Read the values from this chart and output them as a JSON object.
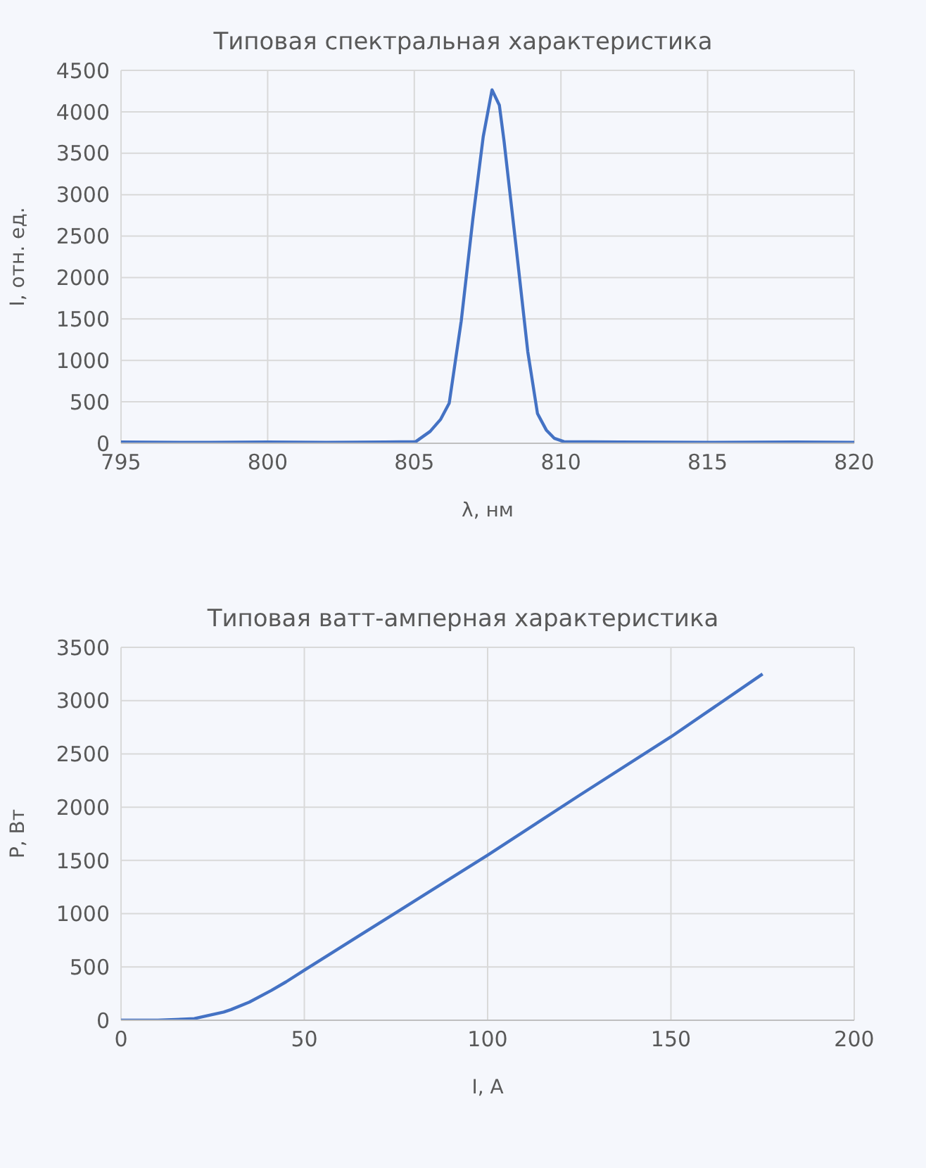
{
  "chart_data": [
    {
      "type": "line",
      "title": "Типовая спектральная характеристика",
      "xlabel": "λ, нм",
      "ylabel": "I, отн. ед.",
      "series": [
        {
          "color": "#4472c4",
          "x": [
            795,
            798,
            800,
            802,
            804,
            805.05,
            805.54,
            805.9,
            806.19,
            806.6,
            807.0,
            807.35,
            807.65,
            807.9,
            808.06,
            808.46,
            808.87,
            809.2,
            809.5,
            809.77,
            810.1,
            812,
            815,
            818,
            820
          ],
          "values": [
            15,
            10,
            15,
            10,
            15,
            20,
            143,
            290,
            484,
            1475,
            2716,
            3700,
            4265,
            4080,
            3646,
            2405,
            1103,
            359,
            160,
            61,
            20,
            15,
            10,
            15,
            10
          ]
        }
      ],
      "xlim": [
        795,
        820
      ],
      "xticks": [
        795,
        800,
        805,
        810,
        815,
        820
      ],
      "ylim": [
        0,
        4500
      ],
      "yticks": [
        0,
        500,
        1000,
        1500,
        2000,
        2500,
        3000,
        3500,
        4000,
        4500
      ],
      "grid": true,
      "marker": "none",
      "line_style": "solid"
    },
    {
      "type": "line",
      "title": "Типовая ватт-амперная характеристика",
      "xlabel": "I, А",
      "ylabel": "P, Вт",
      "series": [
        {
          "color": "#4472c4",
          "x": [
            0,
            10,
            17,
            20,
            28,
            30,
            35,
            41,
            45,
            50,
            75,
            100,
            125,
            150,
            175
          ],
          "values": [
            0,
            0,
            10,
            15,
            77,
            100,
            170,
            280,
            360,
            470,
            1010,
            1550,
            2110,
            2660,
            3250
          ]
        }
      ],
      "xlim": [
        0,
        200
      ],
      "xticks": [
        0,
        50,
        100,
        150,
        200
      ],
      "ylim": [
        0,
        3500
      ],
      "yticks": [
        0,
        500,
        1000,
        1500,
        2000,
        2500,
        3000,
        3500
      ],
      "grid": true,
      "marker": "none",
      "line_style": "solid"
    }
  ]
}
